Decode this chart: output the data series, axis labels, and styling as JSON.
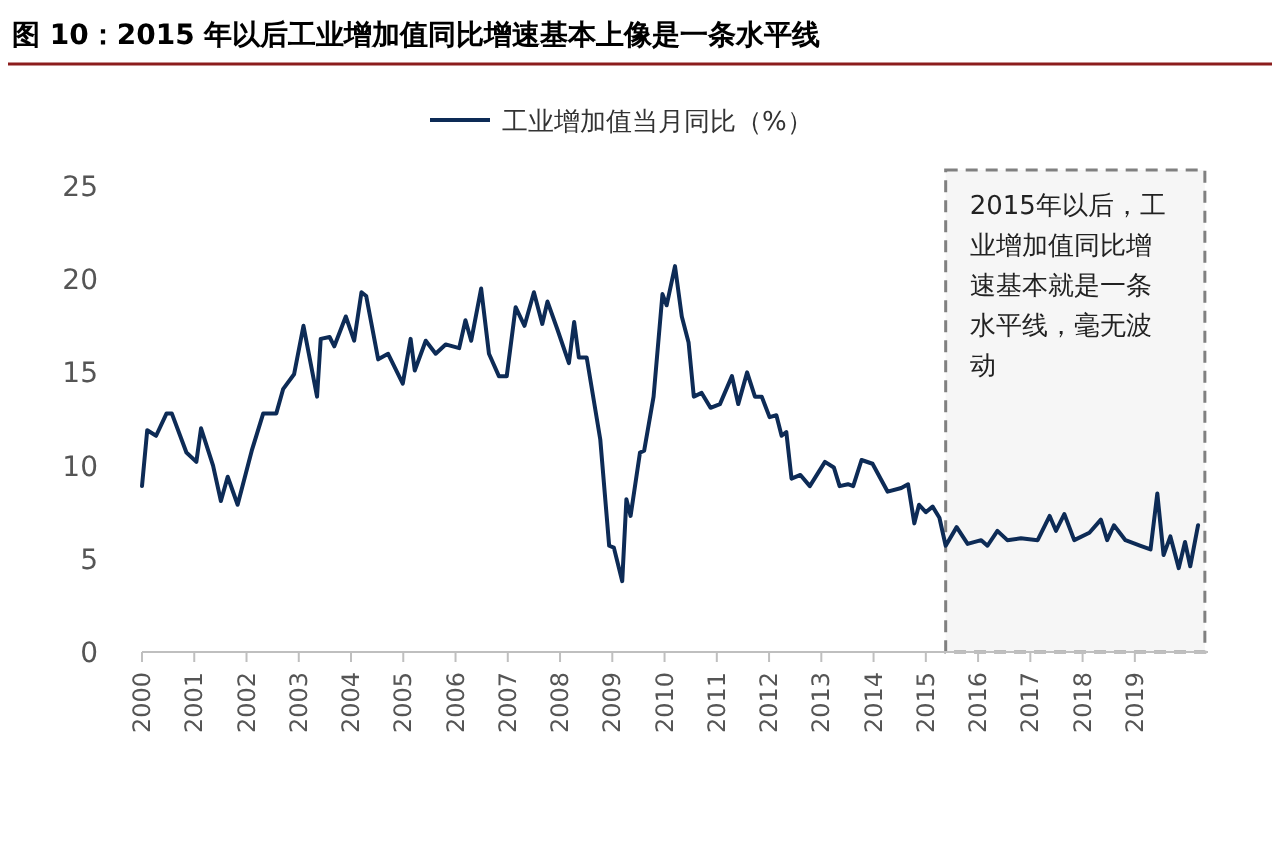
{
  "chart_data": {
    "type": "line",
    "title": "图 10：2015 年以后工业增加值同比增速基本上像是一条水平线",
    "legend": "top",
    "xlim": [
      2000,
      2020.4
    ],
    "xticks": [
      2000,
      2001,
      2002,
      2003,
      2004,
      2005,
      2006,
      2007,
      2008,
      2009,
      2010,
      2011,
      2012,
      2013,
      2014,
      2015,
      2016,
      2017,
      2018,
      2019
    ],
    "ylim": [
      0,
      25
    ],
    "yticks": [
      0,
      5,
      10,
      15,
      20,
      25
    ],
    "line_style": "solid",
    "marker": "none",
    "bands": [
      {
        "axis": "x",
        "from": 2015.38,
        "to": 2020.34,
        "label": "2015年以后，工业增加值同比增速基本就是一条水平线，毫无波动",
        "color": "#808080"
      }
    ],
    "series": [
      {
        "name": "工业增加值当月同比（%）",
        "color": "#0d2b56",
        "x": [
          2000.0,
          2000.1,
          2000.27,
          2000.47,
          2000.57,
          2000.85,
          2001.04,
          2001.13,
          2001.36,
          2001.51,
          2001.64,
          2001.83,
          2002.1,
          2002.32,
          2002.57,
          2002.7,
          2002.91,
          2003.09,
          2003.35,
          2003.42,
          2003.59,
          2003.68,
          2003.9,
          2004.06,
          2004.2,
          2004.29,
          2004.52,
          2004.71,
          2004.99,
          2005.14,
          2005.22,
          2005.43,
          2005.62,
          2005.81,
          2006.07,
          2006.19,
          2006.3,
          2006.49,
          2006.64,
          2006.83,
          2006.98,
          2007.15,
          2007.32,
          2007.5,
          2007.66,
          2007.76,
          2007.95,
          2008.17,
          2008.27,
          2008.36,
          2008.51,
          2008.77,
          2008.94,
          2009.03,
          2009.19,
          2009.27,
          2009.35,
          2009.53,
          2009.61,
          2009.79,
          2009.96,
          2010.04,
          2010.2,
          2010.33,
          2010.46,
          2010.56,
          2010.71,
          2010.88,
          2011.06,
          2011.29,
          2011.41,
          2011.58,
          2011.73,
          2011.86,
          2012.01,
          2012.14,
          2012.24,
          2012.33,
          2012.43,
          2012.6,
          2012.78,
          2013.07,
          2013.24,
          2013.35,
          2013.51,
          2013.61,
          2013.77,
          2013.98,
          2014.27,
          2014.53,
          2014.66,
          2014.78,
          2014.87,
          2015.0,
          2015.13,
          2015.26,
          2015.38,
          2015.59,
          2015.8,
          2016.06,
          2016.18,
          2016.37,
          2016.56,
          2016.82,
          2017.14,
          2017.37,
          2017.49,
          2017.65,
          2017.84,
          2018.13,
          2018.35,
          2018.47,
          2018.6,
          2018.82,
          2019.11,
          2019.3,
          2019.43,
          2019.55,
          2019.68,
          2019.84,
          2019.96,
          2020.06,
          2020.21
        ],
        "values": [
          8.9,
          11.9,
          11.6,
          12.8,
          12.8,
          10.7,
          10.2,
          12.0,
          10.0,
          8.1,
          9.4,
          7.9,
          10.8,
          12.8,
          12.8,
          14.1,
          14.9,
          17.5,
          13.7,
          16.8,
          16.9,
          16.4,
          18.0,
          16.7,
          19.3,
          19.1,
          15.7,
          16.0,
          14.4,
          16.8,
          15.1,
          16.7,
          16.0,
          16.5,
          16.3,
          17.8,
          16.7,
          19.5,
          16.0,
          14.8,
          14.8,
          18.5,
          17.5,
          19.3,
          17.6,
          18.8,
          17.3,
          15.5,
          17.7,
          15.8,
          15.8,
          11.4,
          5.7,
          5.6,
          3.8,
          8.2,
          7.3,
          10.7,
          10.8,
          13.7,
          19.2,
          18.6,
          20.7,
          18.0,
          16.6,
          13.7,
          13.9,
          13.1,
          13.3,
          14.8,
          13.3,
          15.0,
          13.7,
          13.7,
          12.6,
          12.7,
          11.6,
          11.8,
          9.3,
          9.5,
          8.9,
          10.2,
          9.9,
          8.9,
          9.0,
          8.9,
          10.3,
          10.1,
          8.6,
          8.8,
          9.0,
          6.9,
          7.9,
          7.5,
          7.8,
          7.2,
          5.7,
          6.7,
          5.8,
          6.0,
          5.7,
          6.5,
          6.0,
          6.1,
          6.0,
          7.3,
          6.5,
          7.4,
          6.0,
          6.4,
          7.1,
          6.0,
          6.8,
          6.0,
          5.7,
          5.5,
          8.5,
          5.2,
          6.2,
          4.5,
          5.9,
          4.6,
          6.8
        ]
      }
    ]
  }
}
